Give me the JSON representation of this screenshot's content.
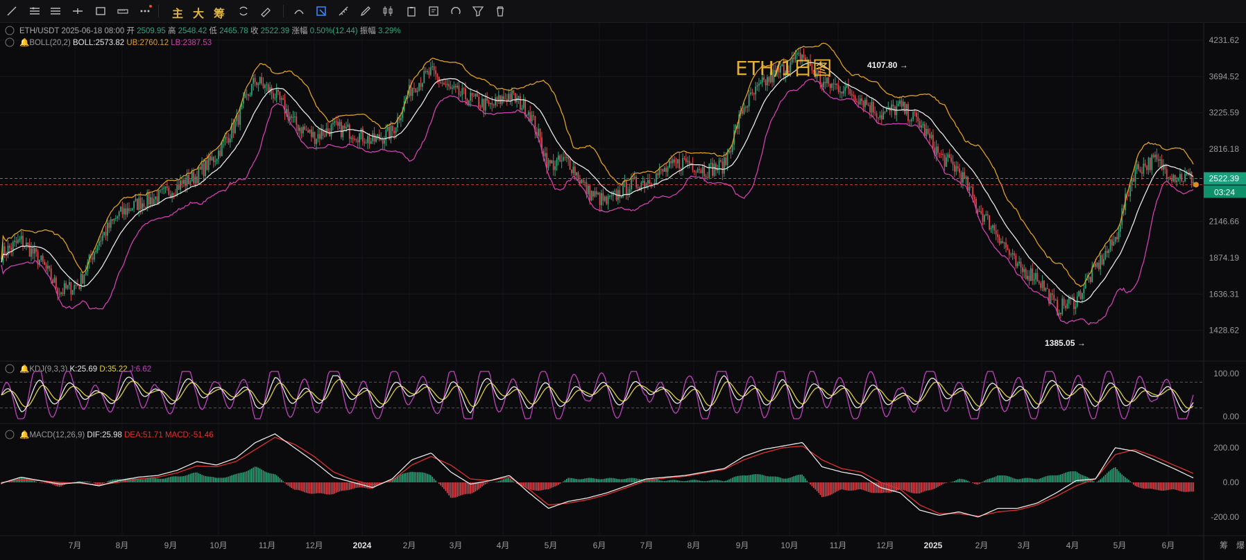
{
  "toolbar": {
    "tools": [
      "line-tool-icon",
      "horizontal-lines-icon",
      "parallel-lines-icon",
      "horizontal-ray-icon",
      "rectangle-icon",
      "measure-icon",
      "more-icon"
    ],
    "main_label": "主",
    "big_label": "大",
    "chip_label": "筹",
    "tools2": [
      "sync-icon",
      "eraser-icon",
      "magnet-tool-icon",
      "indicator-active-icon",
      "ruler-icon",
      "pen-icon",
      "candles-icon",
      "clipboard-icon",
      "note-icon",
      "magnet-icon",
      "filter-icon",
      "trash-icon"
    ]
  },
  "chart_data": {
    "type": "candlestick",
    "symbol": "ETH/USDT",
    "watermark": "ETH/1日图",
    "ohlc_info": {
      "date": "2025-06-18 08:00",
      "open_label": "开",
      "open": "2509.95",
      "high_label": "高",
      "high": "2548.42",
      "low_label": "低",
      "low": "2465.78",
      "close_label": "收",
      "close": "2522.39",
      "change_label": "涨幅",
      "change": "0.50%(12.44)",
      "amp_label": "振幅",
      "amp": "3.29%"
    },
    "boll": {
      "label": "BOLL(20,2)",
      "boll": "BOLL:2573.82",
      "ub": "UB:2760.12",
      "lb": "LB:2387.53",
      "colors": {
        "mid": "#e8e8e8",
        "ub": "#e0a020",
        "lb": "#d040b0"
      }
    },
    "kdj": {
      "label": "KDJ(9,3,3)",
      "k": "K:25.69",
      "d": "D:35.22",
      "j": "J:6.62",
      "colors": {
        "k": "#e8e8e8",
        "d": "#e0d040",
        "j": "#c040c0"
      }
    },
    "macd": {
      "label": "MACD(12,26,9)",
      "dif": "DIF:25.98",
      "dea": "DEA:51.71",
      "macd": "MACD:-51.46",
      "colors": {
        "dif": "#e8e8e8",
        "dea": "#e03030"
      }
    },
    "colors": {
      "up": "#2ea57a",
      "down": "#e0474e",
      "current": "#17a07a"
    },
    "price_axis": [
      "4231.62",
      "3694.52",
      "3225.59",
      "2816.18",
      "2146.66",
      "1874.19",
      "1636.31",
      "1428.62"
    ],
    "current_price": "2522.39",
    "countdown": "03:24",
    "kdj_axis": [
      "100.00",
      "0.00"
    ],
    "macd_axis": [
      "200.00",
      "0.00",
      "-200.00"
    ],
    "x_axis": [
      "7月",
      "8月",
      "9月",
      "10月",
      "11月",
      "12月",
      "2024",
      "2月",
      "3月",
      "4月",
      "5月",
      "6月",
      "7月",
      "8月",
      "9月",
      "10月",
      "11月",
      "12月",
      "2025",
      "2月",
      "3月",
      "4月",
      "5月",
      "6月"
    ],
    "annotations": {
      "high": "4107.80",
      "low": "1385.05"
    },
    "bottom_right": [
      "筹",
      "爆"
    ],
    "series": {
      "close": [
        1900,
        2000,
        1850,
        1650,
        1700,
        2000,
        2200,
        2300,
        2350,
        2450,
        2550,
        2750,
        3100,
        3650,
        3450,
        3100,
        2950,
        3050,
        3000,
        2900,
        3000,
        3550,
        3750,
        3500,
        3400,
        3300,
        3450,
        3250,
        2650,
        2700,
        2400,
        2300,
        2450,
        2500,
        2600,
        2700,
        2600,
        2650,
        3300,
        3600,
        3800,
        4000,
        3600,
        3550,
        3400,
        3200,
        3300,
        3100,
        2750,
        2600,
        2250,
        2050,
        1800,
        1750,
        1550,
        1600,
        1800,
        2000,
        2600,
        2700,
        2550,
        2522
      ],
      "macd_dif": [
        -5,
        30,
        10,
        -10,
        0,
        -20,
        10,
        30,
        40,
        70,
        120,
        100,
        140,
        230,
        280,
        200,
        120,
        30,
        0,
        -30,
        20,
        130,
        170,
        60,
        -10,
        10,
        40,
        -60,
        -150,
        -110,
        -90,
        -60,
        -20,
        20,
        30,
        40,
        60,
        80,
        150,
        190,
        210,
        230,
        90,
        60,
        40,
        -30,
        -60,
        -160,
        -190,
        -170,
        -200,
        -150,
        -150,
        -120,
        -60,
        10,
        20,
        200,
        180,
        130,
        80,
        26
      ],
      "macd_dea": [
        0,
        15,
        10,
        0,
        -5,
        -15,
        0,
        20,
        30,
        55,
        95,
        90,
        120,
        190,
        260,
        220,
        150,
        60,
        15,
        -15,
        10,
        100,
        150,
        100,
        20,
        10,
        30,
        -40,
        -130,
        -120,
        -100,
        -70,
        -30,
        10,
        25,
        35,
        55,
        75,
        130,
        170,
        200,
        210,
        130,
        80,
        60,
        0,
        -40,
        -130,
        -180,
        -180,
        -195,
        -170,
        -160,
        -130,
        -80,
        -20,
        20,
        160,
        190,
        150,
        100,
        52
      ],
      "kdj_k": [
        50,
        30,
        65,
        45,
        70,
        35,
        60,
        80,
        40,
        55,
        75,
        45,
        65,
        30,
        70,
        50,
        40,
        80,
        60,
        35,
        55,
        70,
        45,
        65,
        30,
        75,
        50,
        40,
        60,
        35,
        70,
        55,
        45,
        80,
        40,
        60,
        30,
        75,
        55,
        45,
        65,
        35,
        70,
        50,
        40,
        60,
        30,
        55,
        75,
        45,
        35,
        65,
        50,
        40,
        70,
        55,
        45,
        60,
        35,
        70,
        40,
        26
      ]
    }
  }
}
